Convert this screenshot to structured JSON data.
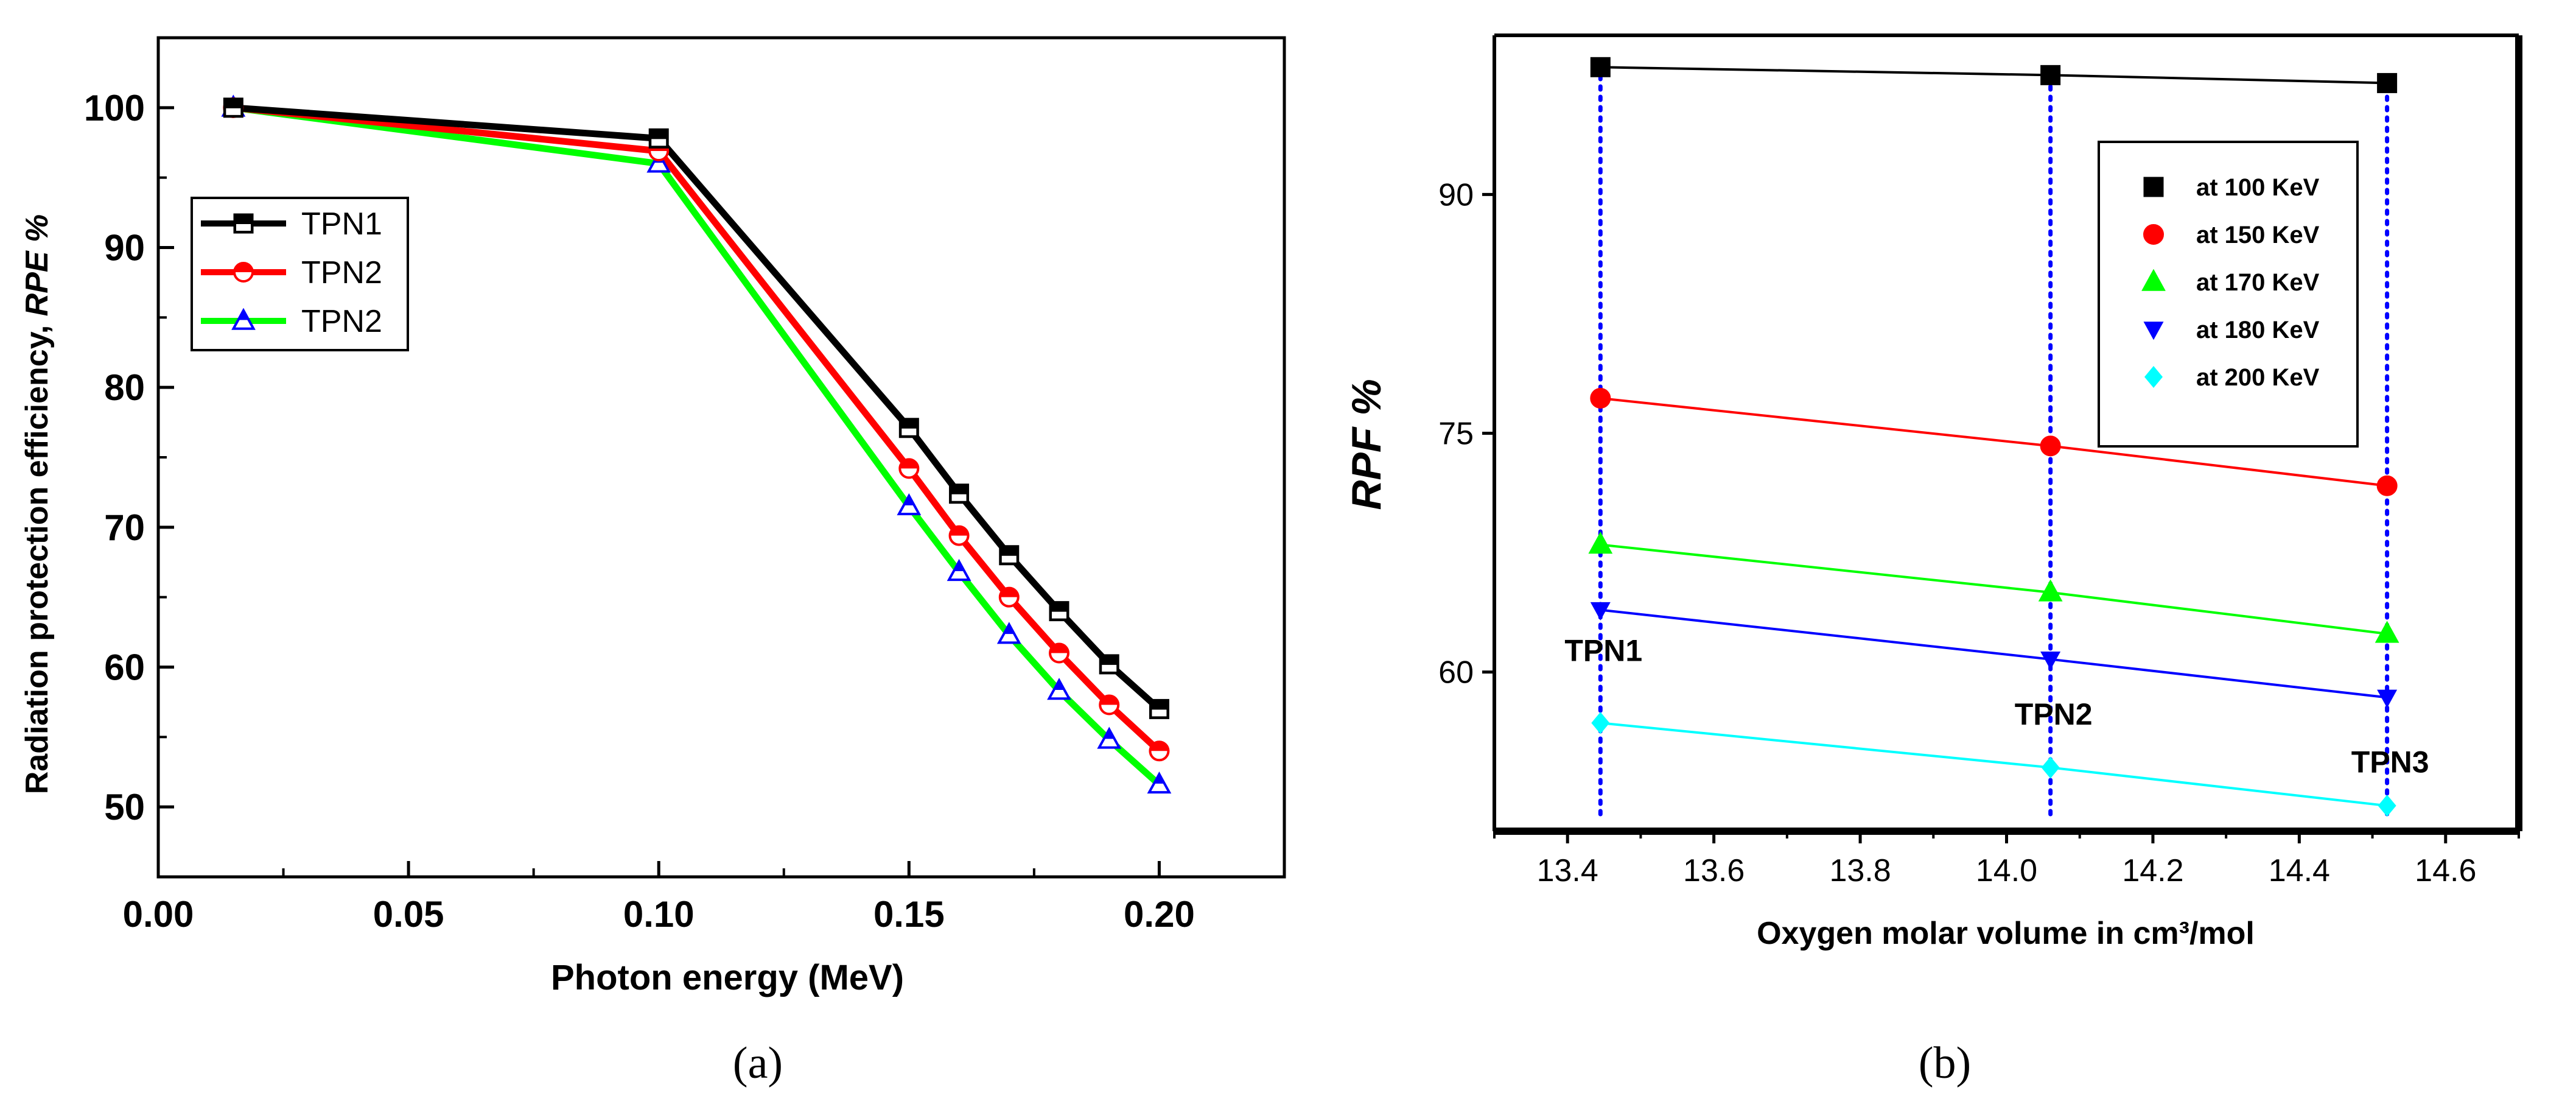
{
  "chart_data": [
    {
      "type": "line",
      "xlabel": "Photon energy (MeV)",
      "ylabel_prefix": "Radiation protection efficiency, ",
      "ylabel_italic": "RPE %",
      "xlim": [
        0.0,
        0.225
      ],
      "ylim": [
        45,
        105
      ],
      "x_ticks": [
        0.0,
        0.05,
        0.1,
        0.15,
        0.2
      ],
      "x_tick_labels": [
        "0.00",
        "0.05",
        "0.10",
        "0.15",
        "0.20"
      ],
      "y_ticks": [
        50,
        60,
        70,
        80,
        90,
        100
      ],
      "y_tick_labels": [
        "50",
        "60",
        "70",
        "80",
        "90",
        "100"
      ],
      "grid": false,
      "legend_position": "upper-left",
      "x": [
        0.015,
        0.1,
        0.15,
        0.16,
        0.17,
        0.18,
        0.19,
        0.2
      ],
      "series": [
        {
          "name": "TPN1",
          "color": "#000000",
          "marker": "square",
          "values": [
            100.0,
            97.8,
            77.1,
            72.4,
            68.0,
            64.0,
            60.2,
            57.0
          ]
        },
        {
          "name": "TPN2",
          "color": "#ff0000",
          "marker": "circle",
          "values": [
            100.0,
            96.9,
            74.2,
            69.4,
            65.0,
            61.0,
            57.3,
            54.0
          ]
        },
        {
          "name": "TPN2",
          "color": "#00ff00",
          "marker": "triangle-up",
          "values": [
            100.0,
            96.0,
            71.5,
            66.8,
            62.3,
            58.3,
            54.8,
            51.6
          ]
        }
      ],
      "panel_label": "(a)"
    },
    {
      "type": "scatter",
      "xlabel": "Oxygen molar volume in cm³/mol",
      "ylabel": "RPF %",
      "xlim": [
        13.3,
        14.7
      ],
      "ylim": [
        50,
        100
      ],
      "x_ticks": [
        13.4,
        13.6,
        13.8,
        14.0,
        14.2,
        14.4,
        14.6
      ],
      "x_tick_labels": [
        "13.4",
        "13.6",
        "13.8",
        "14.0",
        "14.2",
        "14.4",
        "14.6"
      ],
      "y_ticks": [
        60,
        75,
        90
      ],
      "y_tick_labels": [
        "60",
        "75",
        "90"
      ],
      "grid": false,
      "legend_position": "upper-right",
      "x": [
        13.445,
        14.06,
        14.52
      ],
      "series": [
        {
          "name": "at 100 KeV",
          "color": "#000000",
          "marker": "square",
          "values": [
            98.0,
            97.5,
            97.0
          ]
        },
        {
          "name": "at 150 KeV",
          "color": "#ff0000",
          "marker": "circle",
          "values": [
            77.2,
            74.2,
            71.7
          ]
        },
        {
          "name": "at 170 KeV",
          "color": "#00ff00",
          "marker": "triangle-up",
          "values": [
            68.0,
            65.0,
            62.4
          ]
        },
        {
          "name": "at 180 KeV",
          "color": "#0000ff",
          "marker": "triangle-down",
          "values": [
            63.9,
            60.8,
            58.4
          ]
        },
        {
          "name": "at 200 KeV",
          "color": "#00ffff",
          "marker": "diamond",
          "values": [
            56.8,
            54.0,
            51.6
          ]
        }
      ],
      "vlines": [
        13.445,
        14.06,
        14.52
      ],
      "vline_color": "#0000ff",
      "annotations": [
        {
          "text": "TPN1",
          "x": 13.445,
          "y": 60.0
        },
        {
          "text": "TPN2",
          "x": 14.06,
          "y": 56.0
        },
        {
          "text": "TPN3",
          "x": 14.52,
          "y": 53.0
        }
      ],
      "panel_label": "(b)"
    }
  ]
}
